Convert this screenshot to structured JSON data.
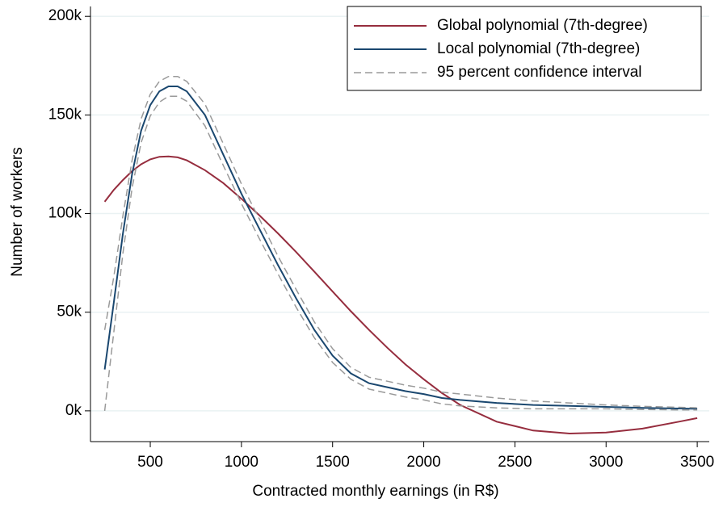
{
  "chart_data": {
    "type": "line",
    "x_label": "Contracted monthly earnings (in R$)",
    "y_label": "Number of workers",
    "x": [
      250,
      300,
      350,
      400,
      450,
      500,
      550,
      600,
      650,
      700,
      800,
      900,
      1000,
      1100,
      1200,
      1300,
      1400,
      1500,
      1600,
      1700,
      1800,
      1900,
      2000,
      2100,
      2200,
      2400,
      2600,
      2800,
      3000,
      3200,
      3400,
      3500
    ],
    "series": [
      {
        "name": "Global polynomial (7th-degree)",
        "color": "#962d3e",
        "dashed": false,
        "values": [
          106000,
          112000,
          117000,
          121500,
          125000,
          127500,
          128800,
          129000,
          128500,
          127000,
          122000,
          115500,
          107500,
          99000,
          90000,
          80500,
          70500,
          60500,
          50500,
          41000,
          32000,
          23500,
          16000,
          9000,
          3000,
          -5500,
          -10000,
          -11500,
          -11000,
          -9000,
          -5500,
          -3700
        ]
      },
      {
        "name": "Local polynomial (7th-degree)",
        "color": "#1a476f",
        "dashed": false,
        "values": [
          21000,
          55000,
          90000,
          120000,
          142000,
          155000,
          162000,
          164500,
          164500,
          162000,
          150000,
          130000,
          110000,
          92000,
          74000,
          57000,
          41000,
          28000,
          19000,
          14000,
          12000,
          10000,
          8500,
          6500,
          5500,
          4000,
          3000,
          2500,
          2000,
          1500,
          1200,
          1000
        ]
      },
      {
        "name": "95 percent confidence interval",
        "color": "#9a9a9a",
        "dashed": true,
        "values": [
          41000,
          68000,
          99000,
          127000,
          148000,
          160500,
          167000,
          169500,
          169500,
          167000,
          155500,
          135500,
          115000,
          97000,
          78500,
          61500,
          45000,
          31500,
          22000,
          17000,
          15000,
          13000,
          11500,
          9500,
          8500,
          6500,
          5000,
          4000,
          3000,
          2300,
          1800,
          1500
        ]
      },
      {
        "color": "#9a9a9a",
        "dashed": true,
        "values": [
          0,
          40000,
          80000,
          113000,
          136000,
          149500,
          156500,
          159500,
          159500,
          157000,
          144500,
          124500,
          105000,
          87000,
          69500,
          52500,
          37000,
          24500,
          16000,
          11000,
          9000,
          7000,
          5500,
          3500,
          2500,
          1500,
          1000,
          1000,
          1000,
          700,
          500,
          500
        ]
      }
    ],
    "xlim": [
      172,
      3566
    ],
    "xticks": [
      500,
      1000,
      1500,
      2000,
      2500,
      3000,
      3500
    ],
    "ylim": [
      -15600,
      205000
    ],
    "yticks": [
      {
        "value": 0,
        "label": "0k"
      },
      {
        "value": 50000,
        "label": "50k"
      },
      {
        "value": 100000,
        "label": "100k"
      },
      {
        "value": 150000,
        "label": "150k"
      },
      {
        "value": 200000,
        "label": "200k"
      }
    ],
    "grid": true,
    "legend": "top-right"
  }
}
